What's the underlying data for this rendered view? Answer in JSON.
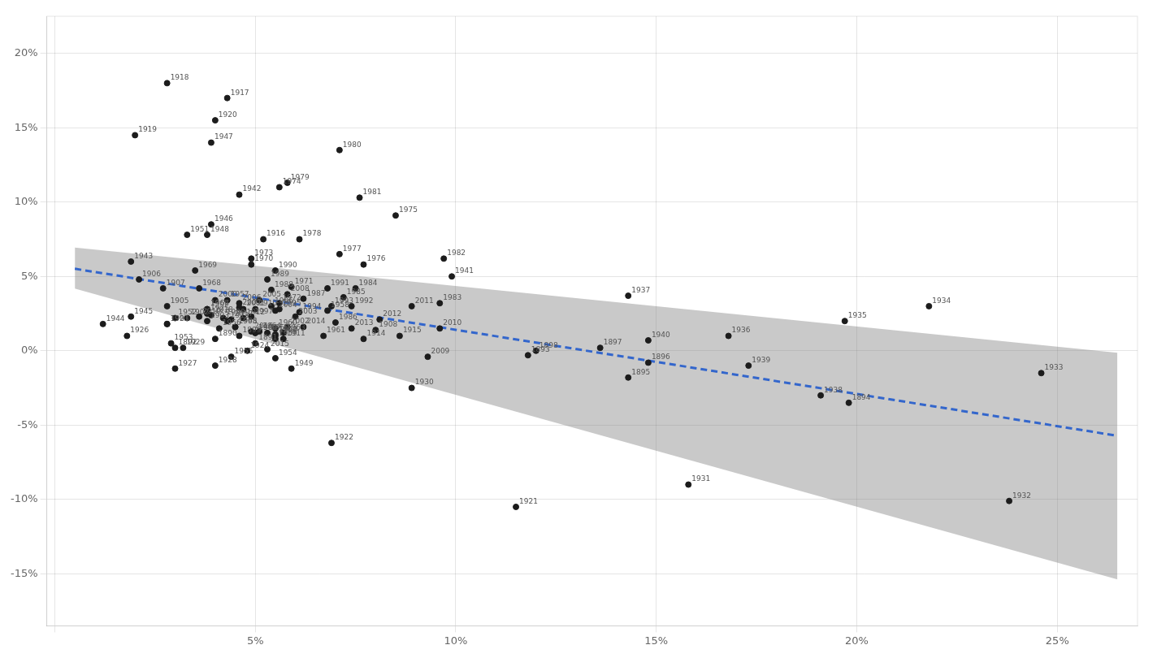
{
  "chart_data": {
    "type": "scatter",
    "xlim": [
      -0.002,
      0.27
    ],
    "ylim": [
      -0.185,
      0.225
    ],
    "xticks": [
      {
        "value": 0.0,
        "label": null
      },
      {
        "value": 0.05,
        "label": "5%"
      },
      {
        "value": 0.1,
        "label": "10%"
      },
      {
        "value": 0.15,
        "label": "15%"
      },
      {
        "value": 0.2,
        "label": "20%"
      },
      {
        "value": 0.25,
        "label": "25%"
      }
    ],
    "yticks": [
      {
        "value": -0.15,
        "label": "-15%"
      },
      {
        "value": -0.1,
        "label": "-10%"
      },
      {
        "value": -0.05,
        "label": "-5%"
      },
      {
        "value": 0.0,
        "label": "0%"
      },
      {
        "value": 0.05,
        "label": "5%"
      },
      {
        "value": 0.1,
        "label": "10%"
      },
      {
        "value": 0.15,
        "label": "15%"
      },
      {
        "value": 0.2,
        "label": "20%"
      }
    ],
    "grid": true,
    "series": [
      {
        "type": "band",
        "color": "#777777",
        "x": [
          0.005,
          0.265
        ],
        "lower": [
          0.04176,
          -0.15376
        ],
        "upper": [
          0.06936,
          -0.00136
        ]
      },
      {
        "type": "line",
        "color": "#3366cc",
        "line_style": "dashed",
        "x": [
          0.005,
          0.265
        ],
        "values": [
          0.05516,
          -0.05716
        ]
      },
      {
        "type": "scatter",
        "color": "#1c1c1c",
        "marker": "circle",
        "x": [
          0.04,
          0.05,
          0.03,
          0.118,
          0.198,
          0.143,
          0.148,
          0.136,
          0.12,
          0.046,
          0.05,
          0.028,
          0.033,
          0.038,
          0.05,
          0.028,
          0.021,
          0.027,
          0.08,
          0.055,
          0.05,
          0.057,
          0.047,
          0.043,
          0.077,
          0.086,
          0.052,
          0.043,
          0.028,
          0.02,
          0.04,
          0.115,
          0.069,
          0.028,
          0.048,
          0.038,
          0.018,
          0.03,
          0.04,
          0.032,
          0.089,
          0.158,
          0.238,
          0.246,
          0.218,
          0.197,
          0.168,
          0.143,
          0.191,
          0.173,
          0.148,
          0.099,
          0.046,
          0.019,
          0.012,
          0.019,
          0.039,
          0.039,
          0.038,
          0.059,
          0.053,
          0.033,
          0.03,
          0.029,
          0.055,
          0.044,
          0.041,
          0.043,
          0.068,
          0.055,
          0.055,
          0.067,
          0.055,
          0.057,
          0.051,
          0.045,
          0.038,
          0.038,
          0.036,
          0.035,
          0.049,
          0.059,
          0.056,
          0.049,
          0.056,
          0.085,
          0.077,
          0.071,
          0.061,
          0.058,
          0.071,
          0.076,
          0.097,
          0.096,
          0.075,
          0.072,
          0.07,
          0.062,
          0.054,
          0.053,
          0.055,
          0.068,
          0.074,
          0.069,
          0.061,
          0.056,
          0.054,
          0.049,
          0.045,
          0.042,
          0.04,
          0.047,
          0.058,
          0.06,
          0.055,
          0.051,
          0.046,
          0.046,
          0.058,
          0.093,
          0.096,
          0.089,
          0.081,
          0.074,
          0.062,
          0.053,
          0.049,
          0.044,
          0.039,
          0.036
        ],
        "values": [
          0.008,
          0.005,
          0.002,
          -0.003,
          -0.035,
          -0.018,
          -0.008,
          0.002,
          0.0,
          0.01,
          0.012,
          0.018,
          0.022,
          0.02,
          0.012,
          0.03,
          0.048,
          0.042,
          0.014,
          0.01,
          0.028,
          0.008,
          0.022,
          0.02,
          0.008,
          0.01,
          0.075,
          0.17,
          0.18,
          0.145,
          0.155,
          -0.105,
          -0.062,
          0.018,
          0.0,
          0.025,
          0.01,
          -0.012,
          -0.01,
          0.002,
          -0.025,
          -0.09,
          -0.101,
          -0.015,
          0.03,
          0.02,
          0.01,
          0.037,
          -0.03,
          -0.01,
          0.007,
          0.05,
          0.105,
          0.06,
          0.018,
          0.023,
          0.085,
          0.14,
          0.078,
          -0.012,
          0.012,
          0.078,
          0.022,
          0.005,
          -0.005,
          -0.004,
          0.015,
          0.034,
          0.027,
          0.008,
          0.015,
          0.01,
          0.011,
          0.012,
          0.013,
          0.016,
          0.028,
          0.028,
          0.042,
          0.054,
          0.058,
          0.043,
          0.032,
          0.062,
          0.11,
          0.091,
          0.058,
          0.065,
          0.075,
          0.113,
          0.135,
          0.103,
          0.062,
          0.032,
          0.042,
          0.036,
          0.019,
          0.035,
          0.041,
          0.048,
          0.054,
          0.042,
          0.03,
          0.03,
          0.026,
          0.028,
          0.03,
          0.023,
          0.016,
          0.022,
          0.034,
          0.028,
          0.016,
          0.023,
          0.027,
          0.034,
          0.032,
          0.029,
          0.038,
          -0.004,
          0.015,
          0.03,
          0.021,
          0.015,
          0.016,
          0.001,
          0.013,
          0.021,
          0.024,
          0.023
        ],
        "labels": [
          "1890",
          "1891",
          "1892",
          "1893",
          "1894",
          "1895",
          "1896",
          "1897",
          "1898",
          "1899",
          "1900",
          "1901",
          "1902",
          "1903",
          "1904",
          "1905",
          "1906",
          "1907",
          "1908",
          "1909",
          "1910",
          "1911",
          "1912",
          "1913",
          "1914",
          "1915",
          "1916",
          "1917",
          "1918",
          "1919",
          "1920",
          "1921",
          "1922",
          "1923",
          "1924",
          "1925",
          "1926",
          "1927",
          "1928",
          "1929",
          "1930",
          "1931",
          "1932",
          "1933",
          "1934",
          "1935",
          "1936",
          "1937",
          "1938",
          "1939",
          "1940",
          "1941",
          "1942",
          "1943",
          "1944",
          "1945",
          "1946",
          "1947",
          "1948",
          "1949",
          "1950",
          "1951",
          "1952",
          "1953",
          "1954",
          "1955",
          "1956",
          "1957",
          "1958",
          "1959",
          "1960",
          "1961",
          "1962",
          "1963",
          "1964",
          "1965",
          "1966",
          "1967",
          "1968",
          "1969",
          "1970",
          "1971",
          "1972",
          "1973",
          "1974",
          "1975",
          "1976",
          "1977",
          "1978",
          "1979",
          "1980",
          "1981",
          "1982",
          "1983",
          "1984",
          "1985",
          "1986",
          "1987",
          "1988",
          "1989",
          "1990",
          "1991",
          "1992",
          "1993",
          "1994",
          "1995",
          "1996",
          "1997",
          "1998",
          "1999",
          "2000",
          "2001",
          "2002",
          "2003",
          "2004",
          "2005",
          "2006",
          "2007",
          "2008",
          "2009",
          "2010",
          "2011",
          "2012",
          "2013",
          "2014",
          "2015",
          "2016",
          "2017",
          "2018",
          "2019"
        ]
      }
    ]
  }
}
